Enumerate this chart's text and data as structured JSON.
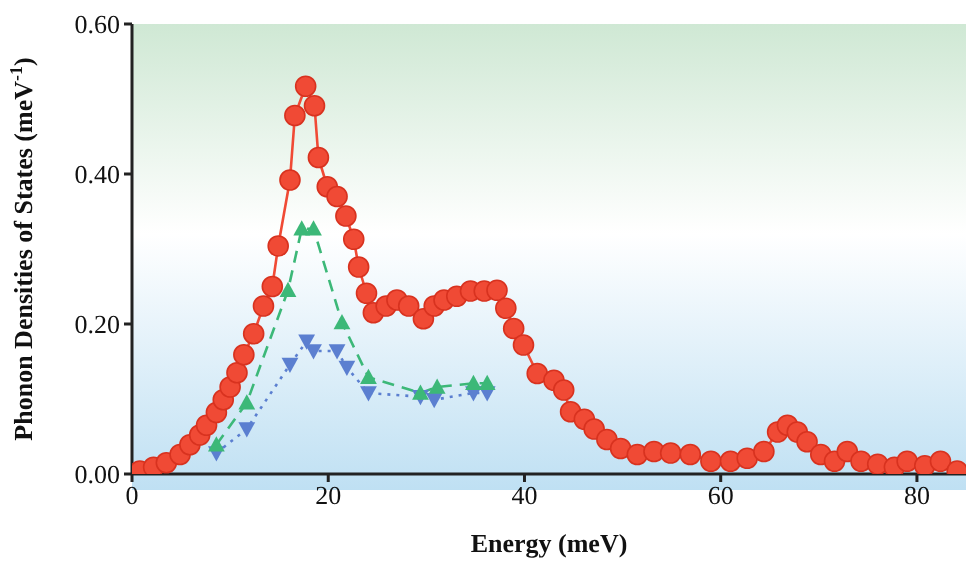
{
  "chart_data": {
    "type": "line",
    "xlabel": "Energy (meV)",
    "ylabel": "Phonon Densities of States (meV$^{-1}$)",
    "xlim": [
      0,
      85
    ],
    "xticks": [
      0,
      20,
      40,
      60,
      80
    ],
    "ylim": [
      0,
      0.6
    ],
    "yticks": [
      {
        "value": 0,
        "label": "0.00"
      },
      {
        "value": 0.2,
        "label": "0.20"
      },
      {
        "value": 0.4,
        "label": "0.40"
      },
      {
        "value": 0.6,
        "label": "0.60"
      }
    ],
    "grid": false,
    "legend": false,
    "series": [
      {
        "color": "#f04a35",
        "marker": "circle",
        "line_style": "solid",
        "x": [
          0.8,
          2.2,
          3.5,
          4.9,
          5.9,
          6.9,
          7.6,
          8.6,
          9.3,
          10,
          10.7,
          11.4,
          12.4,
          13.4,
          14.3,
          14.9,
          16.1,
          16.6,
          17.7,
          18.6,
          19,
          19.9,
          20.9,
          21.8,
          22.6,
          23.1,
          23.9,
          24.6,
          25.9,
          27,
          28.2,
          29.7,
          30.8,
          31.8,
          33.1,
          34.5,
          35.9,
          37.2,
          38.1,
          38.9,
          39.9,
          41.3,
          43,
          44,
          44.7,
          46.1,
          47.1,
          48.4,
          49.8,
          51.5,
          53.2,
          54.9,
          56.9,
          59,
          61,
          62.7,
          64.4,
          65.8,
          66.8,
          67.8,
          68.8,
          70.2,
          71.6,
          72.9,
          74.3,
          76,
          77.7,
          79,
          80.8,
          82.4,
          84.1
        ],
        "values": [
          0.004,
          0.009,
          0.015,
          0.026,
          0.039,
          0.052,
          0.065,
          0.082,
          0.099,
          0.116,
          0.135,
          0.159,
          0.187,
          0.224,
          0.25,
          0.304,
          0.392,
          0.478,
          0.517,
          0.491,
          0.422,
          0.383,
          0.37,
          0.344,
          0.313,
          0.276,
          0.241,
          0.215,
          0.224,
          0.232,
          0.224,
          0.207,
          0.224,
          0.232,
          0.237,
          0.244,
          0.244,
          0.245,
          0.221,
          0.194,
          0.172,
          0.134,
          0.125,
          0.112,
          0.083,
          0.073,
          0.06,
          0.046,
          0.034,
          0.026,
          0.03,
          0.028,
          0.026,
          0.017,
          0.017,
          0.021,
          0.03,
          0.056,
          0.065,
          0.056,
          0.043,
          0.026,
          0.017,
          0.03,
          0.017,
          0.013,
          0.009,
          0.017,
          0.011,
          0.017,
          0.004
        ]
      },
      {
        "color": "#3cb878",
        "marker": "triangle",
        "line_style": "dashed",
        "x": [
          8.6,
          11.7,
          15.9,
          17.3,
          18.5,
          21.4,
          24.1,
          29.4,
          31.1,
          34.8,
          36.2
        ],
        "values": [
          0.039,
          0.095,
          0.245,
          0.327,
          0.327,
          0.202,
          0.129,
          0.108,
          0.116,
          0.121,
          0.121
        ]
      },
      {
        "color": "#5b7fd0",
        "marker": "triangle-down",
        "line_style": "dotted",
        "x": [
          8.6,
          11.7,
          16.1,
          17.8,
          18.5,
          20.9,
          21.9,
          24.1,
          29.4,
          30.8,
          34.8,
          36.2
        ],
        "values": [
          0.028,
          0.06,
          0.146,
          0.177,
          0.164,
          0.164,
          0.142,
          0.108,
          0.103,
          0.099,
          0.108,
          0.108
        ]
      }
    ]
  }
}
